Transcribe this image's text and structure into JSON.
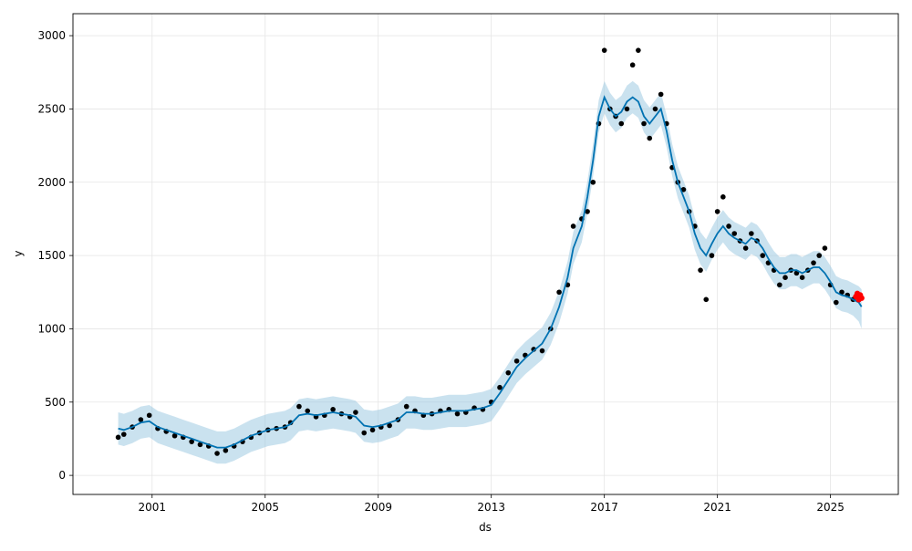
{
  "chart_data": {
    "type": "line",
    "title": "",
    "xlabel": "ds",
    "ylabel": "y",
    "x_ticks": [
      "2001",
      "2005",
      "2009",
      "2013",
      "2017",
      "2021",
      "2025"
    ],
    "y_ticks": [
      "0",
      "500",
      "1000",
      "1500",
      "2000",
      "2500",
      "3000"
    ],
    "xlim": [
      1998.2,
      2027.4
    ],
    "ylim": [
      -130,
      3150
    ],
    "grid": true,
    "series": [
      {
        "role": "observed",
        "style": "points",
        "color": "#000000",
        "x": [
          1999.8,
          2000.0,
          2000.3,
          2000.6,
          2000.9,
          2001.2,
          2001.5,
          2001.8,
          2002.1,
          2002.4,
          2002.7,
          2003.0,
          2003.3,
          2003.6,
          2003.9,
          2004.2,
          2004.5,
          2004.8,
          2005.1,
          2005.4,
          2005.7,
          2005.9,
          2006.2,
          2006.5,
          2006.8,
          2007.1,
          2007.4,
          2007.7,
          2008.0,
          2008.2,
          2008.5,
          2008.8,
          2009.1,
          2009.4,
          2009.7,
          2010.0,
          2010.3,
          2010.6,
          2010.9,
          2011.2,
          2011.5,
          2011.8,
          2012.1,
          2012.4,
          2012.7,
          2013.0,
          2013.3,
          2013.6,
          2013.9,
          2014.2,
          2014.5,
          2014.8,
          2015.1,
          2015.4,
          2015.7,
          2015.9,
          2016.2,
          2016.4,
          2016.6,
          2016.8,
          2017.0,
          2017.2,
          2017.4,
          2017.6,
          2017.8,
          2018.0,
          2018.2,
          2018.4,
          2018.6,
          2018.8,
          2019.0,
          2019.2,
          2019.4,
          2019.6,
          2019.8,
          2020.0,
          2020.2,
          2020.4,
          2020.6,
          2020.8,
          2021.0,
          2021.2,
          2021.4,
          2021.6,
          2021.8,
          2022.0,
          2022.2,
          2022.4,
          2022.6,
          2022.8,
          2023.0,
          2023.2,
          2023.4,
          2023.6,
          2023.8,
          2024.0,
          2024.2,
          2024.4,
          2024.6,
          2024.8,
          2025.0,
          2025.2,
          2025.4,
          2025.6,
          2025.8
        ],
        "values": [
          260,
          280,
          330,
          380,
          410,
          320,
          300,
          270,
          260,
          230,
          210,
          200,
          150,
          170,
          200,
          230,
          260,
          290,
          310,
          320,
          330,
          360,
          470,
          440,
          400,
          410,
          450,
          420,
          400,
          430,
          290,
          310,
          330,
          340,
          380,
          470,
          440,
          410,
          420,
          440,
          450,
          420,
          430,
          460,
          450,
          500,
          600,
          700,
          780,
          820,
          860,
          850,
          1000,
          1250,
          1300,
          1700,
          1750,
          1800,
          2000,
          2400,
          2900,
          2500,
          2450,
          2400,
          2500,
          2800,
          2900,
          2400,
          2300,
          2500,
          2600,
          2400,
          2100,
          2000,
          1950,
          1800,
          1700,
          1400,
          1200,
          1500,
          1800,
          1900,
          1700,
          1650,
          1600,
          1550,
          1650,
          1600,
          1500,
          1450,
          1400,
          1300,
          1350,
          1400,
          1380,
          1350,
          1400,
          1450,
          1500,
          1550,
          1300,
          1180,
          1250,
          1230,
          1200
        ]
      },
      {
        "role": "trend",
        "style": "line",
        "color": "#0072b2",
        "x": [
          1999.8,
          2000.0,
          2000.3,
          2000.6,
          2000.9,
          2001.2,
          2001.5,
          2001.8,
          2002.1,
          2002.4,
          2002.7,
          2003.0,
          2003.3,
          2003.6,
          2003.9,
          2004.2,
          2004.5,
          2004.8,
          2005.1,
          2005.4,
          2005.7,
          2005.9,
          2006.2,
          2006.5,
          2006.8,
          2007.1,
          2007.4,
          2007.7,
          2008.0,
          2008.2,
          2008.5,
          2008.8,
          2009.1,
          2009.4,
          2009.7,
          2010.0,
          2010.3,
          2010.6,
          2010.9,
          2011.2,
          2011.5,
          2011.8,
          2012.1,
          2012.4,
          2012.7,
          2013.0,
          2013.3,
          2013.6,
          2013.9,
          2014.2,
          2014.5,
          2014.8,
          2015.1,
          2015.4,
          2015.7,
          2015.9,
          2016.2,
          2016.4,
          2016.6,
          2016.8,
          2017.0,
          2017.2,
          2017.4,
          2017.6,
          2017.8,
          2018.0,
          2018.2,
          2018.4,
          2018.6,
          2018.8,
          2019.0,
          2019.2,
          2019.4,
          2019.6,
          2019.8,
          2020.0,
          2020.2,
          2020.4,
          2020.6,
          2020.8,
          2021.0,
          2021.2,
          2021.4,
          2021.6,
          2021.8,
          2022.0,
          2022.2,
          2022.4,
          2022.6,
          2022.8,
          2023.0,
          2023.2,
          2023.4,
          2023.6,
          2023.8,
          2024.0,
          2024.2,
          2024.4,
          2024.6,
          2024.8,
          2025.0,
          2025.2,
          2025.4,
          2025.6,
          2025.8,
          2026.0,
          2026.1
        ],
        "values": [
          320,
          310,
          330,
          360,
          370,
          330,
          310,
          290,
          270,
          250,
          230,
          210,
          190,
          190,
          210,
          240,
          270,
          290,
          310,
          320,
          330,
          350,
          410,
          420,
          410,
          420,
          430,
          420,
          410,
          400,
          340,
          330,
          340,
          360,
          380,
          430,
          430,
          420,
          420,
          430,
          440,
          440,
          440,
          450,
          460,
          480,
          560,
          650,
          740,
          800,
          850,
          900,
          1000,
          1150,
          1350,
          1550,
          1700,
          1900,
          2150,
          2450,
          2580,
          2500,
          2450,
          2480,
          2550,
          2580,
          2550,
          2450,
          2400,
          2450,
          2500,
          2350,
          2150,
          2000,
          1900,
          1800,
          1650,
          1550,
          1500,
          1580,
          1650,
          1700,
          1650,
          1620,
          1600,
          1580,
          1620,
          1600,
          1550,
          1480,
          1420,
          1380,
          1380,
          1400,
          1400,
          1380,
          1400,
          1420,
          1420,
          1380,
          1320,
          1250,
          1230,
          1220,
          1200,
          1180,
          1150
        ]
      },
      {
        "role": "uncertainty",
        "style": "band",
        "color": "#9ecae1",
        "x": [
          1999.8,
          2000.0,
          2000.3,
          2000.6,
          2000.9,
          2001.2,
          2001.5,
          2001.8,
          2002.1,
          2002.4,
          2002.7,
          2003.0,
          2003.3,
          2003.6,
          2003.9,
          2004.2,
          2004.5,
          2004.8,
          2005.1,
          2005.4,
          2005.7,
          2005.9,
          2006.2,
          2006.5,
          2006.8,
          2007.1,
          2007.4,
          2007.7,
          2008.0,
          2008.2,
          2008.5,
          2008.8,
          2009.1,
          2009.4,
          2009.7,
          2010.0,
          2010.3,
          2010.6,
          2010.9,
          2011.2,
          2011.5,
          2011.8,
          2012.1,
          2012.4,
          2012.7,
          2013.0,
          2013.3,
          2013.6,
          2013.9,
          2014.2,
          2014.5,
          2014.8,
          2015.1,
          2015.4,
          2015.7,
          2015.9,
          2016.2,
          2016.4,
          2016.6,
          2016.8,
          2017.0,
          2017.2,
          2017.4,
          2017.6,
          2017.8,
          2018.0,
          2018.2,
          2018.4,
          2018.6,
          2018.8,
          2019.0,
          2019.2,
          2019.4,
          2019.6,
          2019.8,
          2020.0,
          2020.2,
          2020.4,
          2020.6,
          2020.8,
          2021.0,
          2021.2,
          2021.4,
          2021.6,
          2021.8,
          2022.0,
          2022.2,
          2022.4,
          2022.6,
          2022.8,
          2023.0,
          2023.2,
          2023.4,
          2023.6,
          2023.8,
          2024.0,
          2024.2,
          2024.4,
          2024.6,
          2024.8,
          2025.0,
          2025.2,
          2025.4,
          2025.6,
          2025.8,
          2026.0,
          2026.1
        ],
        "lower": [
          210,
          200,
          220,
          250,
          260,
          220,
          200,
          180,
          160,
          140,
          120,
          100,
          80,
          80,
          100,
          130,
          160,
          180,
          200,
          210,
          220,
          240,
          300,
          310,
          300,
          310,
          320,
          310,
          300,
          290,
          230,
          220,
          230,
          250,
          270,
          320,
          320,
          310,
          310,
          320,
          330,
          330,
          330,
          340,
          350,
          370,
          450,
          540,
          630,
          690,
          740,
          790,
          890,
          1040,
          1240,
          1440,
          1590,
          1790,
          2040,
          2340,
          2470,
          2390,
          2340,
          2370,
          2440,
          2470,
          2440,
          2340,
          2290,
          2340,
          2390,
          2240,
          2040,
          1890,
          1790,
          1690,
          1540,
          1440,
          1390,
          1470,
          1540,
          1590,
          1540,
          1510,
          1490,
          1470,
          1510,
          1490,
          1440,
          1370,
          1310,
          1270,
          1270,
          1290,
          1290,
          1270,
          1290,
          1310,
          1310,
          1270,
          1210,
          1140,
          1120,
          1110,
          1090,
          1050,
          1000
        ],
        "upper": [
          430,
          420,
          440,
          470,
          480,
          440,
          420,
          400,
          380,
          360,
          340,
          320,
          300,
          300,
          320,
          350,
          380,
          400,
          420,
          430,
          440,
          460,
          520,
          530,
          520,
          530,
          540,
          530,
          520,
          510,
          450,
          440,
          450,
          470,
          490,
          540,
          540,
          530,
          530,
          540,
          550,
          550,
          550,
          560,
          570,
          590,
          670,
          760,
          850,
          910,
          960,
          1010,
          1110,
          1260,
          1460,
          1660,
          1810,
          2010,
          2260,
          2560,
          2690,
          2610,
          2560,
          2590,
          2660,
          2690,
          2660,
          2560,
          2510,
          2560,
          2610,
          2460,
          2260,
          2110,
          2010,
          1910,
          1760,
          1660,
          1610,
          1690,
          1760,
          1810,
          1760,
          1730,
          1710,
          1690,
          1730,
          1710,
          1660,
          1590,
          1530,
          1490,
          1490,
          1510,
          1510,
          1490,
          1510,
          1530,
          1530,
          1490,
          1430,
          1360,
          1340,
          1330,
          1310,
          1290,
          1270
        ]
      },
      {
        "role": "highlighted",
        "style": "points",
        "color": "#ff0000",
        "x": [
          2025.9,
          2025.95,
          2026.0,
          2026.05,
          2026.1
        ],
        "values": [
          1220,
          1240,
          1200,
          1230,
          1210
        ]
      }
    ]
  }
}
